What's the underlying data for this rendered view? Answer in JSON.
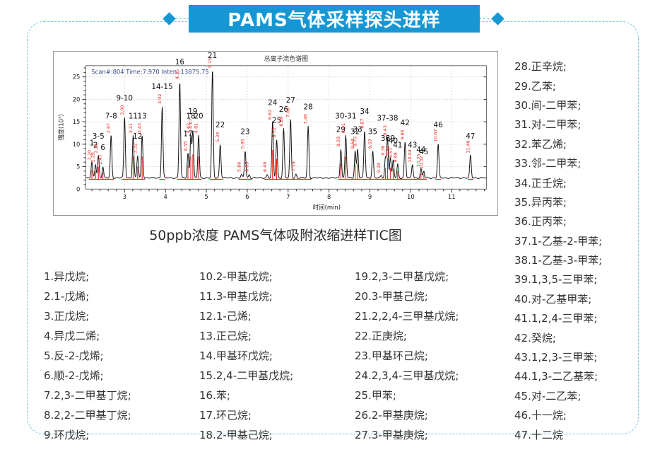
{
  "banner": {
    "title": "PAMS气体采样探头进样",
    "bg_color": "#1697d4"
  },
  "caption": "50ppb浓度 PAMS气体吸附浓缩进样TIC图",
  "chart_data": {
    "type": "line",
    "title": "总离子流色谱图",
    "scan_info": "Scan#:804  Time:7.970  Inten.:13875.75",
    "xlabel": "时间(min)",
    "ylabel": "强度(10³)",
    "x_ticks": [
      3,
      4,
      5,
      6,
      7,
      8,
      9,
      10,
      11
    ],
    "y_ticks": [
      0,
      5,
      10,
      15,
      20,
      25
    ],
    "xlim": [
      2.05,
      11.85
    ],
    "ylim": [
      0,
      27.5
    ],
    "baseline": 2.5,
    "grid": "dotted",
    "line_color": "#161616",
    "integration_color": "#e8251f",
    "peaks": [
      {
        "label": "1",
        "rt": 2.2,
        "height": 6.0
      },
      {
        "label": "2",
        "rt": 2.29,
        "height": 5.5
      },
      {
        "label": "3-5",
        "rt": 2.36,
        "height": 7.5
      },
      {
        "label": "6",
        "rt": 2.47,
        "height": 5.0
      },
      {
        "label": "7-8",
        "rt": 2.67,
        "height": 12.0
      },
      {
        "label": "9-10",
        "rt": 3.0,
        "height": 16.0
      },
      {
        "label": "11",
        "rt": 3.21,
        "height": 12.0
      },
      {
        "label": "12",
        "rt": 3.32,
        "height": 7.5
      },
      {
        "label": "13",
        "rt": 3.43,
        "height": 12.0
      },
      {
        "label": "14-15",
        "rt": 3.92,
        "height": 18.5
      },
      {
        "label": "16",
        "rt": 4.35,
        "height": 24.0
      },
      {
        "label": "17",
        "rt": 4.55,
        "height": 8.0
      },
      {
        "label": "18",
        "rt": 4.62,
        "height": 12.0
      },
      {
        "label": "19",
        "rt": 4.67,
        "height": 13.0
      },
      {
        "label": "20",
        "rt": 4.81,
        "height": 12.0
      },
      {
        "label": "21",
        "rt": 5.15,
        "height": 26.5
      },
      {
        "label": "22",
        "rt": 5.34,
        "height": 10.0
      },
      {
        "label": "23",
        "rt": 5.95,
        "height": 8.5
      },
      {
        "label": "24",
        "rt": 6.62,
        "height": 15.0
      },
      {
        "label": "25",
        "rt": 6.72,
        "height": 11.0
      },
      {
        "label": "26",
        "rt": 6.89,
        "height": 13.5
      },
      {
        "label": "27",
        "rt": 7.06,
        "height": 15.5
      },
      {
        "label": "28",
        "rt": 7.49,
        "height": 14.0
      },
      {
        "label": "29",
        "rt": 8.29,
        "height": 9.0
      },
      {
        "label": "30-31",
        "rt": 8.41,
        "height": 12.0
      },
      {
        "label": "32",
        "rt": 8.64,
        "height": 8.5
      },
      {
        "label": "33",
        "rt": 8.7,
        "height": 9.0
      },
      {
        "label": "34",
        "rt": 8.87,
        "height": 13.0
      },
      {
        "label": "35",
        "rt": 9.07,
        "height": 8.5
      },
      {
        "label": "36",
        "rt": 9.38,
        "height": 7.0
      },
      {
        "label": "37-38",
        "rt": 9.43,
        "height": 11.5
      },
      {
        "label": "39",
        "rt": 9.5,
        "height": 7.0
      },
      {
        "label": "40",
        "rt": 9.57,
        "height": 6.5
      },
      {
        "label": "41",
        "rt": 9.68,
        "height": 5.5
      },
      {
        "label": "42",
        "rt": 9.86,
        "height": 10.5
      },
      {
        "label": "43",
        "rt": 10.04,
        "height": 5.5
      },
      {
        "label": "44",
        "rt": 10.25,
        "height": 4.5
      },
      {
        "label": "45",
        "rt": 10.32,
        "height": 4.0
      },
      {
        "label": "46",
        "rt": 10.67,
        "height": 10.0
      },
      {
        "label": "47",
        "rt": 11.46,
        "height": 7.5
      }
    ],
    "minor_peaks": [
      {
        "rt": 5.86,
        "height": 3.2
      },
      {
        "rt": 6.05,
        "height": 3.2
      },
      {
        "rt": 6.49,
        "height": 3.2
      },
      {
        "rt": 7.19,
        "height": 3.3
      },
      {
        "rt": 9.28,
        "height": 3.0
      }
    ]
  },
  "compounds": {
    "col1": [
      "1.异戊烷;",
      "2.1-戊烯;",
      "3.正戊烷;",
      "4.异戊二烯;",
      "5.反-2-戊烯;",
      "6.顺-2-戊烯;",
      "7.2,3-二甲基丁烷;",
      "8.2,2-二甲基丁烷;",
      "9.环戊烷;"
    ],
    "col2": [
      "10.2-甲基戊烷;",
      "11.3-甲基戊烷;",
      "12.1-己烯;",
      "13.正己烷;",
      "14.甲基环戊烷;",
      "15.2,4-二甲基戊烷;",
      "16.苯;",
      "17.环己烷;",
      "18.2-甲基己烷;"
    ],
    "col3": [
      "19.2,3-二甲基戊烷;",
      "20.3-甲基己烷;",
      "21.2,2,4-三甲基戊烷;",
      "22.正庚烷;",
      "23.甲基环己烷;",
      "24.2,3,4-三甲基戊烷;",
      "25.甲苯;",
      "26.2-甲基庚烷;",
      "27.3-甲基庚烷;"
    ],
    "col4": [
      "28.正辛烷;",
      "29.乙苯;",
      "30.间-二甲苯;",
      "31.对-二甲苯;",
      "32.苯乙烯;",
      "33.邻-二甲苯;",
      "34.正壬烷;",
      "35.异丙苯;",
      "36.正丙苯;",
      "37.1-乙基-2-甲苯;",
      "38.1-乙基-3-甲苯;",
      "39.1,3,5-三甲苯;",
      "40.对-乙基甲苯;",
      "41.1,2,4-三甲苯;",
      "42.癸烷;",
      "43.1,2,3-三甲苯;",
      "44.1,3-二乙基苯;",
      "45.对-二乙苯;",
      "46.十一烷;",
      "47.十二烷"
    ]
  },
  "colors": {
    "banner_bg": "#1697d4",
    "card_border": "#79c7e6",
    "scan_info": "#3a4a8c",
    "red": "#e8251f"
  }
}
